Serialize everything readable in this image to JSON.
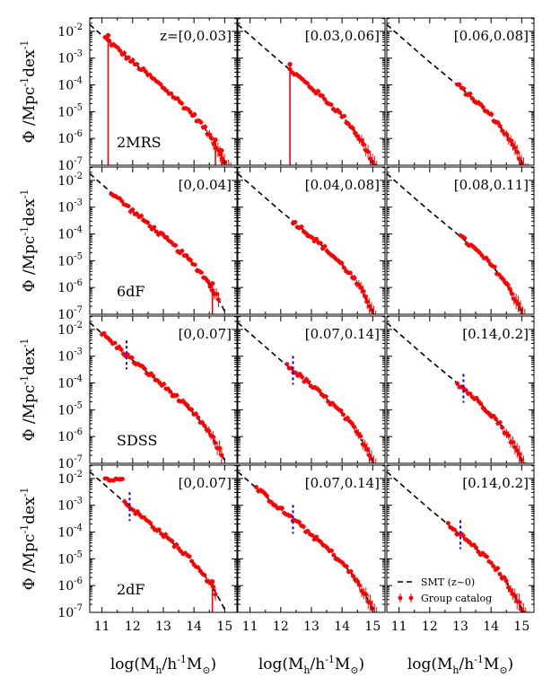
{
  "chart_data": {
    "type": "scatter",
    "title": "",
    "ylabel_main": "Φ /Mpc",
    "ylabel_sup1": "-1",
    "ylabel_dex": "dex",
    "ylabel_sup2": "-1",
    "xlabel_main": "log(M",
    "xlabel_sub1": "h",
    "xlabel_mid": "/h",
    "xlabel_sup": "-1",
    "xlabel_m": "M",
    "xlabel_sub2": "⊙",
    "xlabel_close": ")",
    "xlim": [
      10.6,
      15.4
    ],
    "ylim_log10": [
      -7,
      -1.5
    ],
    "x_ticks": [
      "11",
      "12",
      "13",
      "14",
      "15"
    ],
    "x_tick_values": [
      11,
      12,
      13,
      14,
      15
    ],
    "y_ticks": [
      {
        "base": "10",
        "exp": "-2",
        "value": -2
      },
      {
        "base": "10",
        "exp": "-3",
        "value": -3
      },
      {
        "base": "10",
        "exp": "-4",
        "value": -4
      },
      {
        "base": "10",
        "exp": "-5",
        "value": -5
      },
      {
        "base": "10",
        "exp": "-6",
        "value": -6
      },
      {
        "base": "10",
        "exp": "-7",
        "value": -7
      }
    ],
    "legend": {
      "position": "lower-right of bottom-right panel",
      "entries": [
        {
          "label": "SMT (z~0)",
          "style": "dashed-black"
        },
        {
          "label": "Group catalog",
          "style": "red-points-errorbars"
        }
      ]
    },
    "colors": {
      "data": "#ff0000",
      "model": "#000000",
      "completeness": "#0000ff"
    },
    "surveys": [
      "2MRS",
      "6dF",
      "SDSS",
      "2dF"
    ],
    "model_SMT": {
      "x": [
        10.6,
        11.0,
        11.5,
        12.0,
        12.5,
        13.0,
        13.5,
        14.0,
        14.3,
        14.6,
        14.9,
        15.1,
        15.3
      ],
      "log_phi": [
        -1.75,
        -2.15,
        -2.65,
        -3.15,
        -3.62,
        -4.1,
        -4.6,
        -5.15,
        -5.55,
        -6.05,
        -6.65,
        -7.15,
        -7.6
      ]
    },
    "panels": [
      {
        "row": 0,
        "col": 0,
        "label": "z=[0,0.03]",
        "survey_label": "2MRS",
        "xmin": 11.1,
        "xmax": 15.2,
        "cut": null,
        "drop_lines": [
          11.2,
          14.7,
          14.9
        ]
      },
      {
        "row": 0,
        "col": 1,
        "label": "[0.03,0.06]",
        "survey_label": "",
        "xmin": 12.3,
        "xmax": 15.2,
        "cut": null,
        "drop_lines": [
          12.3
        ]
      },
      {
        "row": 0,
        "col": 2,
        "label": "[0.06,0.08]",
        "survey_label": "",
        "xmin": 12.9,
        "xmax": 15.2,
        "cut": null,
        "drop_lines": []
      },
      {
        "row": 1,
        "col": 0,
        "label": "[0,0.04]",
        "survey_label": "6dF",
        "xmin": 11.3,
        "xmax": 14.8,
        "cut": null,
        "drop_lines": [
          14.6
        ]
      },
      {
        "row": 1,
        "col": 1,
        "label": "[0.04,0.08]",
        "survey_label": "",
        "xmin": 12.4,
        "xmax": 15.1,
        "cut": null,
        "drop_lines": []
      },
      {
        "row": 1,
        "col": 2,
        "label": "[0.08,0.11]",
        "survey_label": "",
        "xmin": 13.0,
        "xmax": 15.1,
        "cut": null,
        "drop_lines": []
      },
      {
        "row": 2,
        "col": 0,
        "label": "[0,0.07]",
        "survey_label": "SDSS",
        "xmin": 11.0,
        "xmax": 14.9,
        "cut": 11.8,
        "drop_lines": []
      },
      {
        "row": 2,
        "col": 1,
        "label": "[0.07,0.14]",
        "survey_label": "",
        "xmin": 12.2,
        "xmax": 15.1,
        "cut": 12.4,
        "drop_lines": []
      },
      {
        "row": 2,
        "col": 2,
        "label": "[0.14,0.2]",
        "survey_label": "",
        "xmin": 12.9,
        "xmax": 15.2,
        "cut": 13.1,
        "drop_lines": []
      },
      {
        "row": 3,
        "col": 0,
        "label": "[0,0.07]",
        "survey_label": "2dF",
        "xmin": 11.1,
        "xmax": 14.7,
        "cut": 11.9,
        "drop_lines": [
          14.6
        ]
      },
      {
        "row": 3,
        "col": 1,
        "label": "[0.07,0.14]",
        "survey_label": "",
        "xmin": 11.2,
        "xmax": 15.2,
        "cut": 12.4,
        "drop_lines": []
      },
      {
        "row": 3,
        "col": 2,
        "label": "[0.14,0.2]",
        "survey_label": "",
        "xmin": 12.6,
        "xmax": 15.2,
        "cut": 13.0,
        "drop_lines": []
      }
    ]
  }
}
